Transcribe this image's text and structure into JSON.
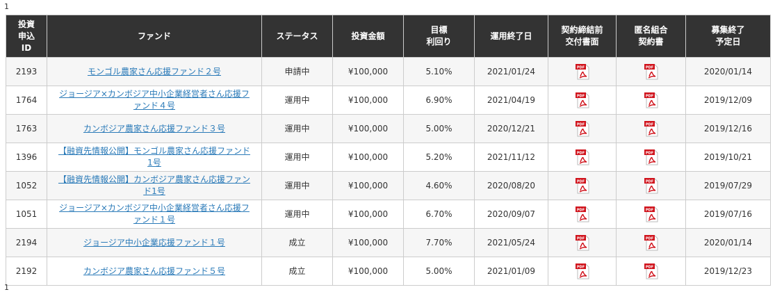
{
  "pagination_top": "1",
  "pagination_bottom": "1",
  "icon_label": "PDF",
  "table": {
    "headers": [
      "投資\n申込\nID",
      "ファンド",
      "ステータス",
      "投資金額",
      "目標\n利回り",
      "運用終了日",
      "契約締結前\n交付書面",
      "匿名組合\n契約書",
      "募集終了\n予定日"
    ],
    "rows": [
      [
        "2193",
        "モンゴル農家さん応援ファンド２号",
        "申請中",
        "¥100,000",
        "5.10%",
        "2021/01/24",
        "2020/01/14"
      ],
      [
        "1764",
        "ジョージア×カンボジア中小企業経営者さん応援ファンド４号",
        "運用中",
        "¥100,000",
        "6.90%",
        "2021/04/19",
        "2019/12/09"
      ],
      [
        "1763",
        "カンボジア農家さん応援ファンド３号",
        "運用中",
        "¥100,000",
        "5.00%",
        "2020/12/21",
        "2019/12/16"
      ],
      [
        "1396",
        "【融資先情報公開】モンゴル農家さん応援ファンド1号",
        "運用中",
        "¥100,000",
        "5.20%",
        "2021/11/12",
        "2019/10/21"
      ],
      [
        "1052",
        "【融資先情報公開】カンボジア農家さん応援ファンド1号",
        "運用中",
        "¥100,000",
        "4.60%",
        "2020/08/20",
        "2019/07/29"
      ],
      [
        "1051",
        "ジョージア×カンボジア中小企業経営者さん応援ファンド１号",
        "運用中",
        "¥100,000",
        "6.70%",
        "2020/09/07",
        "2019/07/16"
      ],
      [
        "2194",
        "ジョージア中小企業応援ファンド１号",
        "成立",
        "¥100,000",
        "7.70%",
        "2021/05/24",
        "2020/01/14"
      ],
      [
        "2192",
        "カンボジア農家さん応援ファンド５号",
        "成立",
        "¥100,000",
        "5.00%",
        "2021/01/09",
        "2019/12/23"
      ]
    ]
  }
}
